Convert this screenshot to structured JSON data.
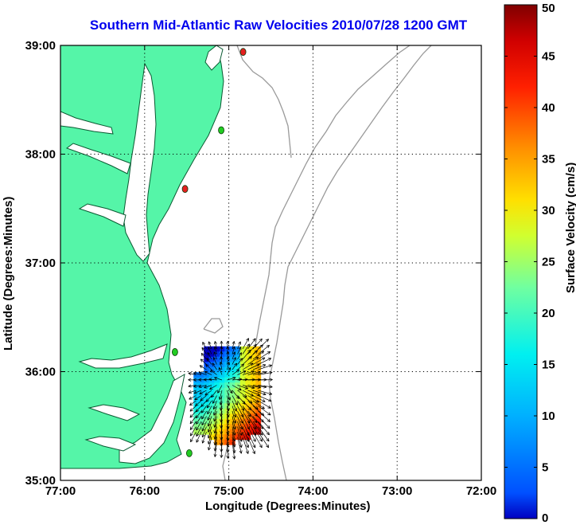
{
  "title": "Southern Mid-Atlantic Raw Velocities 2010/07/28 1200 GMT",
  "colors": {
    "land": "#55f5a8",
    "coast": "#0a5a32",
    "bathymetry": "#9a9a9a",
    "station_green": "#22cc22",
    "station_red": "#e52020",
    "frame": "#000000"
  },
  "map": {
    "xlabel": "Longitude (Degrees:Minutes)",
    "ylabel": "Latitude (Degrees:Minutes)",
    "lon_range": [
      -77,
      -72
    ],
    "lat_range": [
      35,
      39
    ],
    "x_ticks": [
      {
        "value": -77,
        "label": "77:00"
      },
      {
        "value": -76,
        "label": "76:00"
      },
      {
        "value": -75,
        "label": "75:00"
      },
      {
        "value": -74,
        "label": "74:00"
      },
      {
        "value": -73,
        "label": "73:00"
      },
      {
        "value": -72,
        "label": "72:00"
      }
    ],
    "y_ticks": [
      {
        "value": 39,
        "label": "39:00"
      },
      {
        "value": 38,
        "label": "38:00"
      },
      {
        "value": 37,
        "label": "37:00"
      },
      {
        "value": 36,
        "label": "36:00"
      },
      {
        "value": 35,
        "label": "35:00"
      }
    ],
    "grid": true,
    "stations": [
      {
        "lon": -74.83,
        "lat": 38.94,
        "color": "red"
      },
      {
        "lon": -75.09,
        "lat": 38.22,
        "color": "green"
      },
      {
        "lon": -75.52,
        "lat": 37.68,
        "color": "red"
      },
      {
        "lon": -75.64,
        "lat": 36.18,
        "color": "green"
      },
      {
        "lon": -75.47,
        "lat": 35.25,
        "color": "green"
      }
    ]
  },
  "colorbar": {
    "label": "Surface Velocity (cm/s)",
    "min": 0,
    "max": 50,
    "ticks": [
      "0",
      "5",
      "10",
      "15",
      "20",
      "25",
      "30",
      "35",
      "40",
      "45",
      "50"
    ]
  }
}
